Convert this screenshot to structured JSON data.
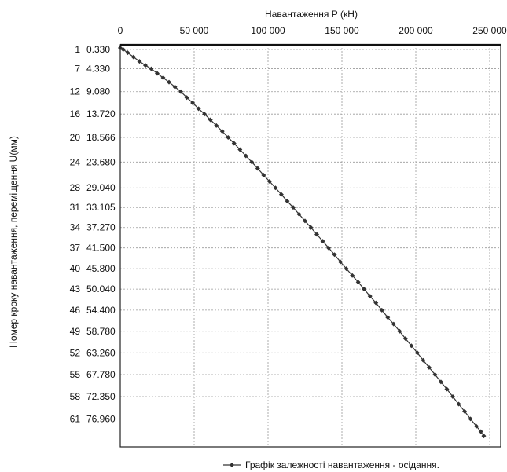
{
  "chart_data": {
    "type": "line",
    "title": "",
    "xlabel": "Навантаження Р (кН)",
    "ylabel": "Номер кроку навантаження, переміщення U(мм)",
    "x_axis_position": "top",
    "y_axis_inverted": true,
    "xlim": [
      0,
      250000
    ],
    "ylim": [
      0,
      80
    ],
    "x_ticks": [
      0,
      50000,
      100000,
      150000,
      200000,
      250000
    ],
    "x_tick_labels": [
      "0",
      "50 000",
      "100 000",
      "150 000",
      "200 000",
      "250 000"
    ],
    "y_ticks": [
      {
        "step": "1",
        "u": "0.330",
        "value": 0.33
      },
      {
        "step": "7",
        "u": "4.330",
        "value": 4.33
      },
      {
        "step": "12",
        "u": "9.080",
        "value": 9.08
      },
      {
        "step": "16",
        "u": "13.720",
        "value": 13.72
      },
      {
        "step": "20",
        "u": "18.566",
        "value": 18.566
      },
      {
        "step": "24",
        "u": "23.680",
        "value": 23.68
      },
      {
        "step": "28",
        "u": "29.040",
        "value": 29.04
      },
      {
        "step": "31",
        "u": "33.105",
        "value": 33.105
      },
      {
        "step": "34",
        "u": "37.270",
        "value": 37.27
      },
      {
        "step": "37",
        "u": "41.500",
        "value": 41.5
      },
      {
        "step": "40",
        "u": "45.800",
        "value": 45.8
      },
      {
        "step": "43",
        "u": "50.040",
        "value": 50.04
      },
      {
        "step": "46",
        "u": "54.400",
        "value": 54.4
      },
      {
        "step": "49",
        "u": "58.780",
        "value": 58.78
      },
      {
        "step": "52",
        "u": "63.260",
        "value": 63.26
      },
      {
        "step": "55",
        "u": "67.780",
        "value": 67.78
      },
      {
        "step": "58",
        "u": "72.350",
        "value": 72.35
      },
      {
        "step": "61",
        "u": "76.960",
        "value": 76.96
      }
    ],
    "grid": true,
    "legend_position": "bottom",
    "series": [
      {
        "name": "Графік залежності навантаження - осідання.",
        "color": "#333333",
        "marker": "diamond",
        "points": [
          {
            "x": 0,
            "y": 0
          },
          {
            "x": 2000,
            "y": 0.33
          },
          {
            "x": 5000,
            "y": 1.0
          },
          {
            "x": 9000,
            "y": 1.9
          },
          {
            "x": 13000,
            "y": 2.8
          },
          {
            "x": 17000,
            "y": 3.6
          },
          {
            "x": 21000,
            "y": 4.33
          },
          {
            "x": 25000,
            "y": 5.3
          },
          {
            "x": 29000,
            "y": 6.2
          },
          {
            "x": 33000,
            "y": 7.1
          },
          {
            "x": 37000,
            "y": 8.1
          },
          {
            "x": 41000,
            "y": 9.08
          },
          {
            "x": 45000,
            "y": 10.3
          },
          {
            "x": 49000,
            "y": 11.4
          },
          {
            "x": 53000,
            "y": 12.6
          },
          {
            "x": 57000,
            "y": 13.72
          },
          {
            "x": 61000,
            "y": 14.9
          },
          {
            "x": 65000,
            "y": 16.1
          },
          {
            "x": 69000,
            "y": 17.3
          },
          {
            "x": 73000,
            "y": 18.566
          },
          {
            "x": 77000,
            "y": 19.8
          },
          {
            "x": 81000,
            "y": 21.1
          },
          {
            "x": 85000,
            "y": 22.4
          },
          {
            "x": 89000,
            "y": 23.68
          },
          {
            "x": 93000,
            "y": 25.0
          },
          {
            "x": 97000,
            "y": 26.4
          },
          {
            "x": 101000,
            "y": 27.7
          },
          {
            "x": 105000,
            "y": 29.04
          },
          {
            "x": 109000,
            "y": 30.4
          },
          {
            "x": 113000,
            "y": 31.8
          },
          {
            "x": 117000,
            "y": 33.105
          },
          {
            "x": 121000,
            "y": 34.5
          },
          {
            "x": 125000,
            "y": 35.9
          },
          {
            "x": 129000,
            "y": 37.27
          },
          {
            "x": 133000,
            "y": 38.7
          },
          {
            "x": 137000,
            "y": 40.1
          },
          {
            "x": 141000,
            "y": 41.5
          },
          {
            "x": 145000,
            "y": 42.9
          },
          {
            "x": 149000,
            "y": 44.4
          },
          {
            "x": 153000,
            "y": 45.8
          },
          {
            "x": 157000,
            "y": 47.2
          },
          {
            "x": 161000,
            "y": 48.6
          },
          {
            "x": 165000,
            "y": 50.04
          },
          {
            "x": 169000,
            "y": 51.5
          },
          {
            "x": 173000,
            "y": 52.9
          },
          {
            "x": 177000,
            "y": 54.4
          },
          {
            "x": 181000,
            "y": 55.9
          },
          {
            "x": 185000,
            "y": 57.3
          },
          {
            "x": 189000,
            "y": 58.78
          },
          {
            "x": 193000,
            "y": 60.3
          },
          {
            "x": 197000,
            "y": 61.8
          },
          {
            "x": 201000,
            "y": 63.26
          },
          {
            "x": 205000,
            "y": 64.8
          },
          {
            "x": 209000,
            "y": 66.3
          },
          {
            "x": 213000,
            "y": 67.78
          },
          {
            "x": 217000,
            "y": 69.3
          },
          {
            "x": 221000,
            "y": 70.8
          },
          {
            "x": 225000,
            "y": 72.35
          },
          {
            "x": 229000,
            "y": 73.9
          },
          {
            "x": 233000,
            "y": 75.4
          },
          {
            "x": 237000,
            "y": 76.96
          },
          {
            "x": 241000,
            "y": 78.5
          },
          {
            "x": 244000,
            "y": 79.6
          },
          {
            "x": 246000,
            "y": 80.5
          }
        ]
      }
    ]
  }
}
